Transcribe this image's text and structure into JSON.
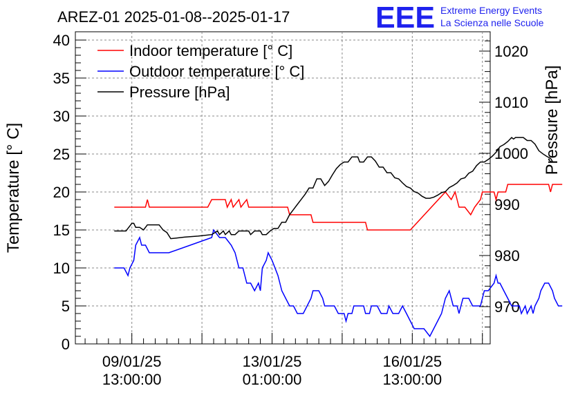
{
  "header": {
    "title": "AREZ-01 2025-01-08--2025-01-17",
    "logo_text": "EEE",
    "logo_line1": "Extreme Energy Events",
    "logo_line2": "La Scienza nelle Scuole",
    "logo_color": "#1f22ee"
  },
  "chart_data": {
    "type": "line",
    "title": "AREZ-01 2025-01-08--2025-01-17",
    "ylabel": "Temperature [° C]",
    "y2label": "Pressure [hPa]",
    "ylim": [
      0,
      40
    ],
    "y2lim": [
      963,
      1025
    ],
    "xlim_hours_since_start": [
      0,
      213
    ],
    "yticks": [
      "0",
      "5",
      "10",
      "15",
      "20",
      "25",
      "30",
      "35",
      "40"
    ],
    "y2ticks": [
      "970",
      "980",
      "990",
      "1000",
      "1010",
      "1020"
    ],
    "xticks": [
      {
        "date": "09/01/25",
        "time": "13:00:00"
      },
      {
        "date": "13/01/25",
        "time": "01:00:00"
      },
      {
        "date": "16/01/25",
        "time": "13:00:00"
      }
    ],
    "grid": true,
    "legend_position": "top-left",
    "series": [
      {
        "name": "Indoor temperature [° C]",
        "color": "#ff0000",
        "axis": "left",
        "points": [
          [
            20,
            18
          ],
          [
            36,
            18
          ],
          [
            37,
            19
          ],
          [
            38,
            18
          ],
          [
            68,
            18
          ],
          [
            70,
            19
          ],
          [
            77,
            19
          ],
          [
            78,
            18
          ],
          [
            80,
            19
          ],
          [
            81,
            18
          ],
          [
            84,
            19
          ],
          [
            85,
            18
          ],
          [
            88,
            19
          ],
          [
            89,
            18
          ],
          [
            109,
            18
          ],
          [
            110,
            17
          ],
          [
            121,
            17
          ],
          [
            122,
            16
          ],
          [
            149,
            16
          ],
          [
            150,
            15
          ],
          [
            172,
            15
          ],
          [
            190,
            20
          ],
          [
            193,
            19
          ],
          [
            195,
            20
          ],
          [
            196,
            19
          ],
          [
            197,
            18
          ],
          [
            200,
            18
          ],
          [
            203,
            17
          ],
          [
            205,
            18
          ],
          [
            208,
            19
          ],
          [
            209,
            20
          ],
          [
            215,
            20
          ],
          [
            216,
            19
          ],
          [
            217,
            20
          ],
          [
            221,
            20
          ],
          [
            222,
            21
          ],
          [
            243,
            21
          ],
          [
            244,
            20
          ],
          [
            245,
            21
          ],
          [
            250,
            21
          ]
        ]
      },
      {
        "name": "Outdoor temperature [° C]",
        "color": "#0000ff",
        "axis": "left",
        "points": [
          [
            20,
            10
          ],
          [
            25,
            10
          ],
          [
            27,
            9
          ],
          [
            28,
            10
          ],
          [
            30,
            11
          ],
          [
            31,
            13
          ],
          [
            33,
            14
          ],
          [
            34,
            13
          ],
          [
            36,
            13
          ],
          [
            38,
            12
          ],
          [
            48,
            12
          ],
          [
            70,
            14
          ],
          [
            71,
            15
          ],
          [
            74,
            14
          ],
          [
            77,
            14
          ],
          [
            80,
            13
          ],
          [
            82,
            12
          ],
          [
            84,
            10
          ],
          [
            86,
            10
          ],
          [
            88,
            8
          ],
          [
            90,
            8
          ],
          [
            92,
            7
          ],
          [
            94,
            8
          ],
          [
            95,
            7
          ],
          [
            96,
            10
          ],
          [
            98,
            11
          ],
          [
            99,
            12
          ],
          [
            101,
            11
          ],
          [
            104,
            9
          ],
          [
            106,
            7
          ],
          [
            108,
            6
          ],
          [
            110,
            5
          ],
          [
            112,
            5
          ],
          [
            114,
            4
          ],
          [
            117,
            4
          ],
          [
            119,
            5
          ],
          [
            121,
            6
          ],
          [
            122,
            7
          ],
          [
            125,
            7
          ],
          [
            127,
            6
          ],
          [
            128,
            5
          ],
          [
            133,
            5
          ],
          [
            135,
            4
          ],
          [
            138,
            4
          ],
          [
            139,
            3
          ],
          [
            140,
            4
          ],
          [
            142,
            4
          ],
          [
            143,
            5
          ],
          [
            148,
            5
          ],
          [
            149,
            4
          ],
          [
            151,
            4
          ],
          [
            152,
            5
          ],
          [
            155,
            5
          ],
          [
            157,
            4
          ],
          [
            160,
            4
          ],
          [
            161,
            5
          ],
          [
            163,
            4
          ],
          [
            166,
            4
          ],
          [
            168,
            5
          ],
          [
            170,
            4
          ],
          [
            172,
            3
          ],
          [
            174,
            2
          ],
          [
            179,
            2
          ],
          [
            182,
            1
          ],
          [
            188,
            4
          ],
          [
            190,
            6
          ],
          [
            192,
            7
          ],
          [
            194,
            5
          ],
          [
            196,
            5
          ],
          [
            197,
            4
          ],
          [
            198,
            5
          ],
          [
            199,
            6
          ],
          [
            202,
            6
          ],
          [
            204,
            5
          ],
          [
            208,
            5
          ],
          [
            209,
            6
          ],
          [
            210,
            7
          ],
          [
            212,
            7
          ],
          [
            215,
            8
          ],
          [
            216,
            9
          ],
          [
            217,
            8
          ],
          [
            218,
            8
          ],
          [
            220,
            7
          ],
          [
            222,
            6
          ],
          [
            224,
            5
          ],
          [
            226,
            5
          ],
          [
            228,
            5
          ],
          [
            229,
            4
          ],
          [
            231,
            5
          ],
          [
            232,
            4
          ],
          [
            234,
            5
          ],
          [
            235,
            4
          ],
          [
            236,
            5
          ],
          [
            238,
            6
          ],
          [
            239,
            7
          ],
          [
            241,
            8
          ],
          [
            243,
            8
          ],
          [
            245,
            7
          ],
          [
            246,
            6
          ],
          [
            248,
            5
          ],
          [
            250,
            5
          ]
        ]
      },
      {
        "name": "Pressure [hPa]",
        "color": "#000000",
        "axis": "right",
        "points": [
          [
            20,
            984.8
          ],
          [
            26,
            984.8
          ],
          [
            28,
            985.8
          ],
          [
            29,
            986.3
          ],
          [
            30,
            986.3
          ],
          [
            31,
            985.5
          ],
          [
            33,
            985.5
          ],
          [
            35,
            985
          ],
          [
            37,
            986
          ],
          [
            43,
            986
          ],
          [
            45,
            985
          ],
          [
            47,
            984.5
          ],
          [
            49,
            983.3
          ],
          [
            56,
            983.6
          ],
          [
            63,
            983.8
          ],
          [
            70,
            984.1
          ],
          [
            73,
            984.8
          ],
          [
            74,
            984.1
          ],
          [
            76,
            984.8
          ],
          [
            77,
            984.1
          ],
          [
            79,
            984.8
          ],
          [
            80,
            984.1
          ],
          [
            82,
            984.1
          ],
          [
            84,
            984.8
          ],
          [
            89,
            984.8
          ],
          [
            90,
            984.1
          ],
          [
            92,
            984.8
          ],
          [
            95,
            984.8
          ],
          [
            96,
            984.1
          ],
          [
            98,
            984.1
          ],
          [
            100,
            984.8
          ],
          [
            102,
            985.3
          ],
          [
            104,
            985.3
          ],
          [
            106,
            986.5
          ],
          [
            108,
            986.5
          ],
          [
            110,
            988
          ],
          [
            112,
            989
          ],
          [
            114,
            990
          ],
          [
            116,
            991
          ],
          [
            118,
            992
          ],
          [
            120,
            993.2
          ],
          [
            122,
            993.2
          ],
          [
            124,
            995
          ],
          [
            126,
            995
          ],
          [
            128,
            993.7
          ],
          [
            130,
            994.5
          ],
          [
            132,
            995.8
          ],
          [
            134,
            997
          ],
          [
            136,
            997.8
          ],
          [
            138,
            998.3
          ],
          [
            140,
            998.3
          ],
          [
            142,
            999.3
          ],
          [
            145,
            999.3
          ],
          [
            146,
            998.3
          ],
          [
            148,
            998.3
          ],
          [
            150,
            999.3
          ],
          [
            152,
            999.3
          ],
          [
            154,
            998.5
          ],
          [
            156,
            997.3
          ],
          [
            158,
            997.3
          ],
          [
            160,
            996.2
          ],
          [
            162,
            996.2
          ],
          [
            164,
            995.2
          ],
          [
            166,
            995
          ],
          [
            168,
            994.2
          ],
          [
            170,
            993.5
          ],
          [
            172,
            993.2
          ],
          [
            174,
            992.5
          ],
          [
            176,
            992.2
          ],
          [
            178,
            991.6
          ],
          [
            180,
            991.2
          ],
          [
            182,
            991.2
          ],
          [
            184,
            991.4
          ],
          [
            186,
            991.8
          ],
          [
            188,
            992.3
          ],
          [
            190,
            992.5
          ],
          [
            192,
            993.3
          ],
          [
            194,
            993.7
          ],
          [
            196,
            994.2
          ],
          [
            198,
            995
          ],
          [
            200,
            995.2
          ],
          [
            202,
            996.1
          ],
          [
            204,
            996.5
          ],
          [
            206,
            997.6
          ],
          [
            208,
            998.3
          ],
          [
            210,
            998.3
          ],
          [
            212,
            998.8
          ],
          [
            214,
            999.4
          ],
          [
            216,
            1000.2
          ],
          [
            218,
            1001.3
          ],
          [
            220,
            1001.7
          ],
          [
            222,
            1002.3
          ],
          [
            224,
            1003.1
          ],
          [
            225,
            1002.8
          ],
          [
            226,
            1003.1
          ],
          [
            230,
            1003.1
          ],
          [
            232,
            1002.5
          ],
          [
            234,
            1002.5
          ],
          [
            236,
            1001.8
          ],
          [
            238,
            1000.5
          ],
          [
            240,
            999.9
          ],
          [
            242,
            999.4
          ],
          [
            244,
            999
          ],
          [
            245,
            998.4
          ]
        ]
      }
    ]
  }
}
